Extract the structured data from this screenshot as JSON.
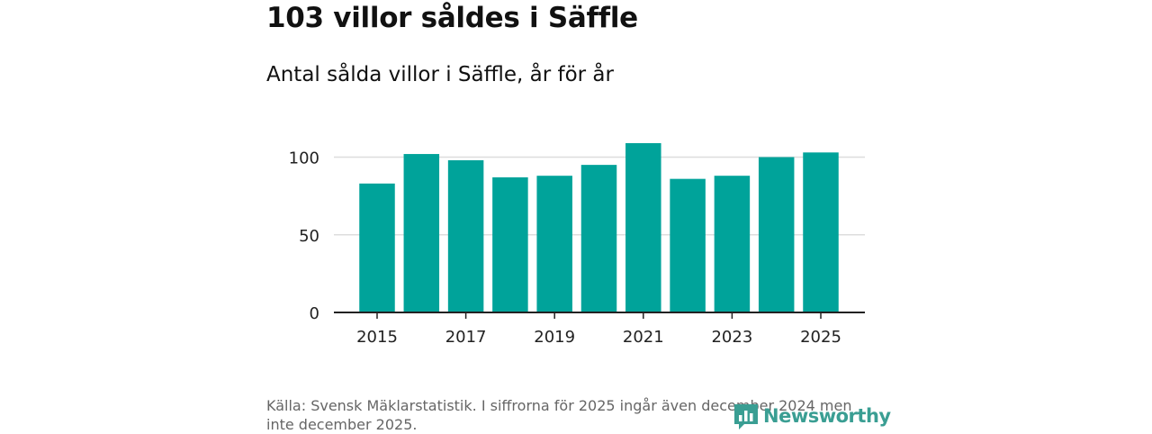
{
  "header": {
    "title": "103 villor såldes i Säffle",
    "subtitle": "Antal sålda villor i Säffle, år för år"
  },
  "chart_data": {
    "type": "bar",
    "categories": [
      "2015",
      "2016",
      "2017",
      "2018",
      "2019",
      "2020",
      "2021",
      "2022",
      "2023",
      "2024",
      "2025"
    ],
    "values": [
      83,
      102,
      98,
      87,
      88,
      95,
      109,
      86,
      88,
      100,
      103
    ],
    "title": "103 villor såldes i Säffle",
    "subtitle": "Antal sålda villor i Säffle, år för år",
    "xlabel": "",
    "ylabel": "",
    "ylim": [
      0,
      120
    ],
    "yticks": [
      0,
      50,
      100
    ],
    "xticks": [
      "2015",
      "2017",
      "2019",
      "2021",
      "2023",
      "2025"
    ],
    "grid": true,
    "bar_color": "#00a39a"
  },
  "footer": {
    "source": "Källa: Svensk Mäklarstatistik. I siffrorna för 2025 ingår även december 2024 men inte december 2025.",
    "logo_text": "Newsworthy",
    "logo_color": "#3a9e93",
    "logo_icon": "bar-chart-speech-bubble-icon"
  }
}
